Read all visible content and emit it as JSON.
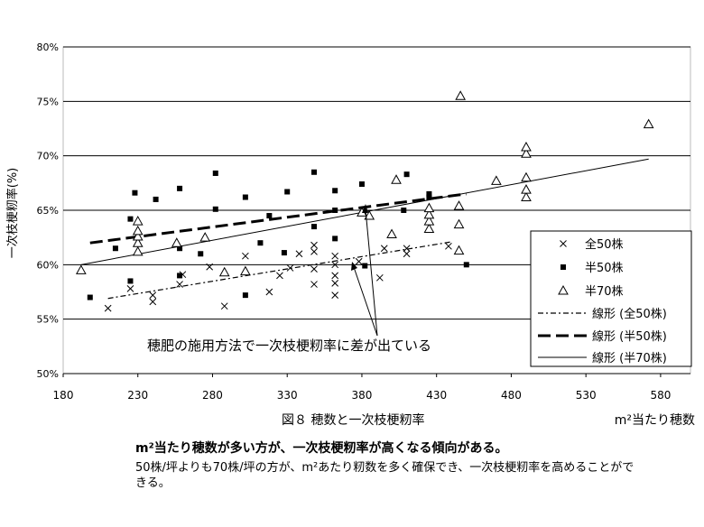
{
  "chart_data": {
    "type": "scatter",
    "ylabel": "一次枝梗籾率(%)",
    "xlabel": "m²当たり穂数",
    "figure_title": "図８ 穂数と一次枝梗籾率",
    "xlim": [
      180,
      600
    ],
    "ylim": [
      50,
      80
    ],
    "x_ticks": [
      "180",
      "230",
      "280",
      "330",
      "380",
      "430",
      "480",
      "530",
      "580"
    ],
    "y_ticks": [
      "50%",
      "55%",
      "60%",
      "65%",
      "70%",
      "75%",
      "80%"
    ],
    "grid": "horizontal",
    "legend_position": "right",
    "annotation": "穂肥の施用方法で一次枝梗籾率に差が出ている",
    "series": [
      {
        "name": "全50株",
        "marker": "x",
        "points": [
          [
            210,
            56.0
          ],
          [
            225,
            57.8
          ],
          [
            240,
            56.6
          ],
          [
            240,
            57.2
          ],
          [
            258,
            58.2
          ],
          [
            260,
            59.1
          ],
          [
            278,
            59.8
          ],
          [
            288,
            56.2
          ],
          [
            302,
            60.8
          ],
          [
            318,
            57.5
          ],
          [
            325,
            59.0
          ],
          [
            332,
            59.7
          ],
          [
            338,
            61.0
          ],
          [
            348,
            58.2
          ],
          [
            348,
            59.6
          ],
          [
            348,
            61.2
          ],
          [
            348,
            61.8
          ],
          [
            362,
            57.2
          ],
          [
            362,
            58.3
          ],
          [
            362,
            59.0
          ],
          [
            362,
            60.0
          ],
          [
            362,
            60.8
          ],
          [
            378,
            60.3
          ],
          [
            392,
            58.8
          ],
          [
            395,
            61.5
          ],
          [
            410,
            61.5
          ],
          [
            410,
            61.0
          ],
          [
            438,
            61.7
          ]
        ]
      },
      {
        "name": "半50株",
        "marker": "square",
        "points": [
          [
            198,
            57.0
          ],
          [
            215,
            61.5
          ],
          [
            225,
            58.5
          ],
          [
            225,
            64.2
          ],
          [
            228,
            66.6
          ],
          [
            242,
            66.0
          ],
          [
            258,
            59.0
          ],
          [
            258,
            61.5
          ],
          [
            258,
            67.0
          ],
          [
            272,
            61.0
          ],
          [
            282,
            65.1
          ],
          [
            282,
            68.4
          ],
          [
            302,
            57.2
          ],
          [
            302,
            66.2
          ],
          [
            312,
            62.0
          ],
          [
            318,
            64.5
          ],
          [
            328,
            61.1
          ],
          [
            330,
            66.7
          ],
          [
            348,
            63.5
          ],
          [
            348,
            68.5
          ],
          [
            362,
            62.4
          ],
          [
            362,
            65.0
          ],
          [
            362,
            66.8
          ],
          [
            380,
            67.4
          ],
          [
            382,
            59.9
          ],
          [
            408,
            65.0
          ],
          [
            410,
            68.3
          ],
          [
            425,
            66.5
          ],
          [
            425,
            66.2
          ],
          [
            450,
            60.0
          ]
        ]
      },
      {
        "name": "半70株",
        "marker": "triangle",
        "points": [
          [
            192,
            59.5
          ],
          [
            230,
            61.2
          ],
          [
            230,
            62.0
          ],
          [
            230,
            62.6
          ],
          [
            230,
            63.1
          ],
          [
            230,
            64.0
          ],
          [
            256,
            62.0
          ],
          [
            275,
            62.5
          ],
          [
            288,
            59.3
          ],
          [
            302,
            59.4
          ],
          [
            380,
            64.8
          ],
          [
            385,
            64.5
          ],
          [
            400,
            62.8
          ],
          [
            403,
            67.8
          ],
          [
            425,
            63.3
          ],
          [
            425,
            64.0
          ],
          [
            425,
            64.6
          ],
          [
            425,
            65.2
          ],
          [
            445,
            61.3
          ],
          [
            445,
            63.7
          ],
          [
            445,
            65.4
          ],
          [
            446,
            75.5
          ],
          [
            470,
            67.7
          ],
          [
            490,
            66.2
          ],
          [
            490,
            66.9
          ],
          [
            490,
            68.0
          ],
          [
            490,
            70.2
          ],
          [
            490,
            70.8
          ],
          [
            572,
            72.9
          ]
        ]
      }
    ],
    "trendlines": [
      {
        "name": "線形 (全50株)",
        "style": "dash-dot",
        "x": [
          210,
          440
        ],
        "y": [
          56.9,
          62.1
        ]
      },
      {
        "name": "線形 (半50株)",
        "style": "long-dash",
        "x": [
          198,
          450
        ],
        "y": [
          62.0,
          66.5
        ]
      },
      {
        "name": "線形 (半70株)",
        "style": "solid",
        "x": [
          192,
          572
        ],
        "y": [
          60.0,
          69.7
        ]
      }
    ]
  },
  "caption": {
    "main": "m²当たり穂数が多い方が、一次枝梗籾率が高くなる傾向がある。",
    "sub": "50株/坪よりも70株/坪の方が、m²あたり籾数を多く確保でき、一次枝梗籾率を高めることができる。"
  }
}
